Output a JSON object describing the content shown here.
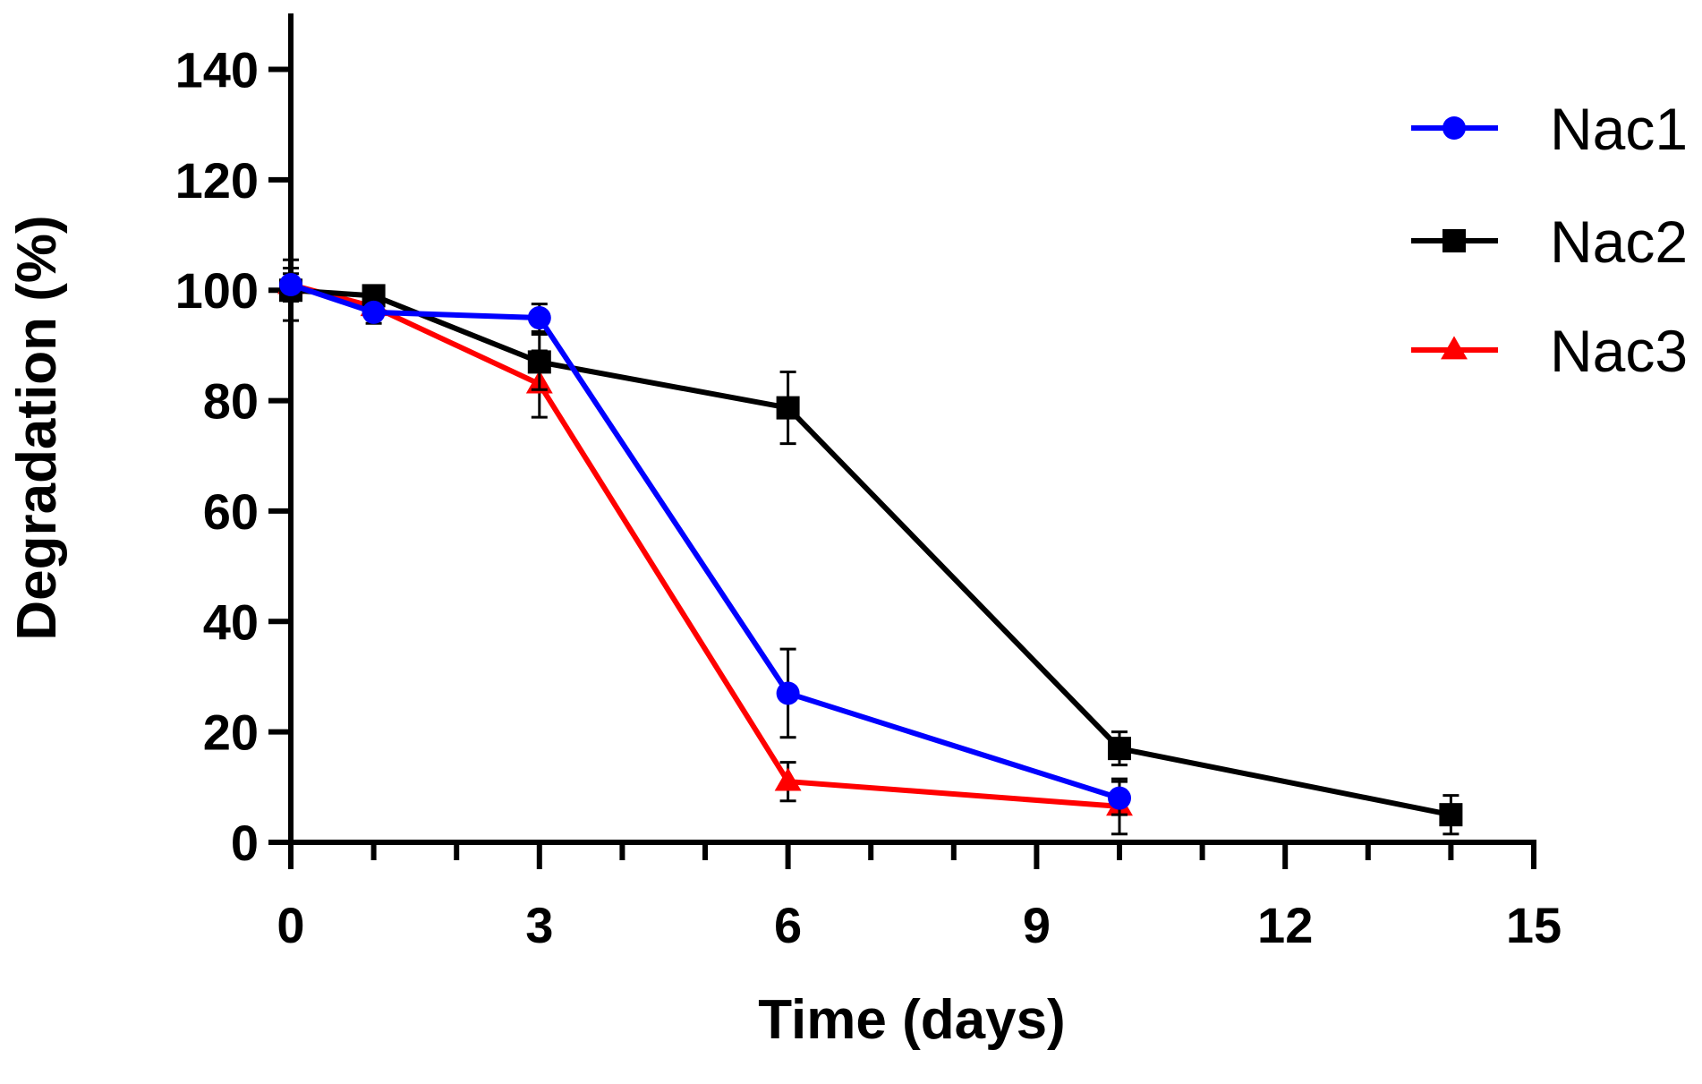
{
  "chart_data": {
    "type": "line",
    "title": "",
    "xlabel": "Time (days)",
    "ylabel": "Degradation (%)",
    "xlim": [
      0,
      15
    ],
    "ylim": [
      0,
      150
    ],
    "xticks": [
      0,
      3,
      6,
      9,
      12,
      15
    ],
    "xtick_labels": [
      "0",
      "3",
      "6",
      "9",
      "12",
      "15"
    ],
    "yticks": [
      0,
      20,
      40,
      60,
      80,
      100,
      120,
      140
    ],
    "ytick_labels": [
      "0",
      "20",
      "40",
      "60",
      "80",
      "100",
      "120",
      "140"
    ],
    "grid": false,
    "legend_position": "top-right",
    "series": [
      {
        "name": "Nac1",
        "color": "#0000ff",
        "marker": "circle",
        "x": [
          0,
          1,
          3,
          6,
          10
        ],
        "y": [
          101,
          96,
          95,
          27,
          8
        ],
        "err": [
          3,
          2,
          2.5,
          8,
          3
        ]
      },
      {
        "name": "Nac2",
        "color": "#000000",
        "marker": "square",
        "x": [
          0,
          1,
          3,
          6,
          10,
          14
        ],
        "y": [
          100,
          99,
          87,
          78.7,
          17,
          5
        ],
        "err": [
          5.5,
          1.5,
          5,
          6.5,
          3,
          3.5
        ]
      },
      {
        "name": "Nac3",
        "color": "#ff0000",
        "marker": "triangle",
        "x": [
          0,
          1,
          3,
          6,
          10
        ],
        "y": [
          101,
          97,
          83,
          11,
          6.5
        ],
        "err": [
          2,
          1.5,
          6,
          3.5,
          5
        ]
      }
    ]
  }
}
